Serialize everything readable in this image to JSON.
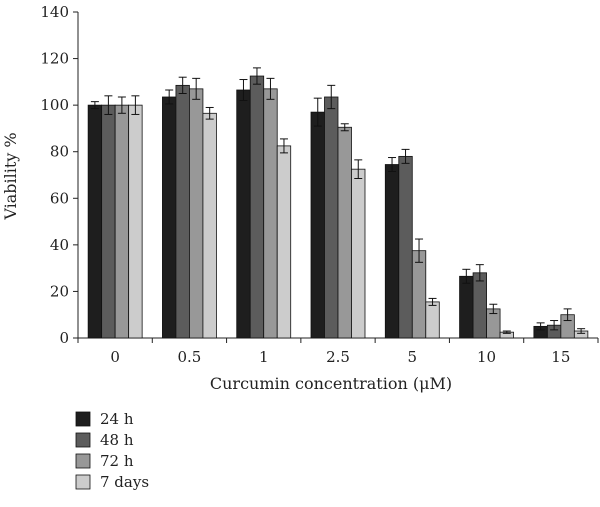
{
  "chart_data": {
    "type": "bar",
    "xlabel": "Curcumin concentration (μM)",
    "ylabel": "Viability %",
    "ylim": [
      0,
      140
    ],
    "yticks": [
      0,
      20,
      40,
      60,
      80,
      100,
      120,
      140
    ],
    "categories": [
      "0",
      "0.5",
      "1",
      "2.5",
      "5",
      "10",
      "15"
    ],
    "series": [
      {
        "name": "24 h",
        "color": "#1e1e1e",
        "values": [
          100,
          103.5,
          106.5,
          97,
          74.5,
          26.5,
          5
        ],
        "errors": [
          1.5,
          3,
          4.5,
          6,
          3,
          3,
          1.5
        ]
      },
      {
        "name": "48 h",
        "color": "#5c5c5c",
        "values": [
          100,
          108.5,
          112.5,
          103.5,
          78,
          28,
          5.5
        ],
        "errors": [
          4,
          3.5,
          3.5,
          5,
          3,
          3.5,
          2
        ]
      },
      {
        "name": "72 h",
        "color": "#989898",
        "values": [
          100,
          107,
          107,
          90.5,
          37.5,
          12.5,
          10
        ],
        "errors": [
          3.5,
          4.5,
          4.5,
          1.5,
          5,
          2,
          2.5
        ]
      },
      {
        "name": "7 days",
        "color": "#cccccc",
        "values": [
          100,
          96.5,
          82.5,
          72.5,
          15.5,
          2.5,
          3
        ],
        "errors": [
          4,
          2.5,
          3,
          4,
          1.5,
          0.5,
          1
        ]
      }
    ],
    "legend": "bottom-left"
  }
}
